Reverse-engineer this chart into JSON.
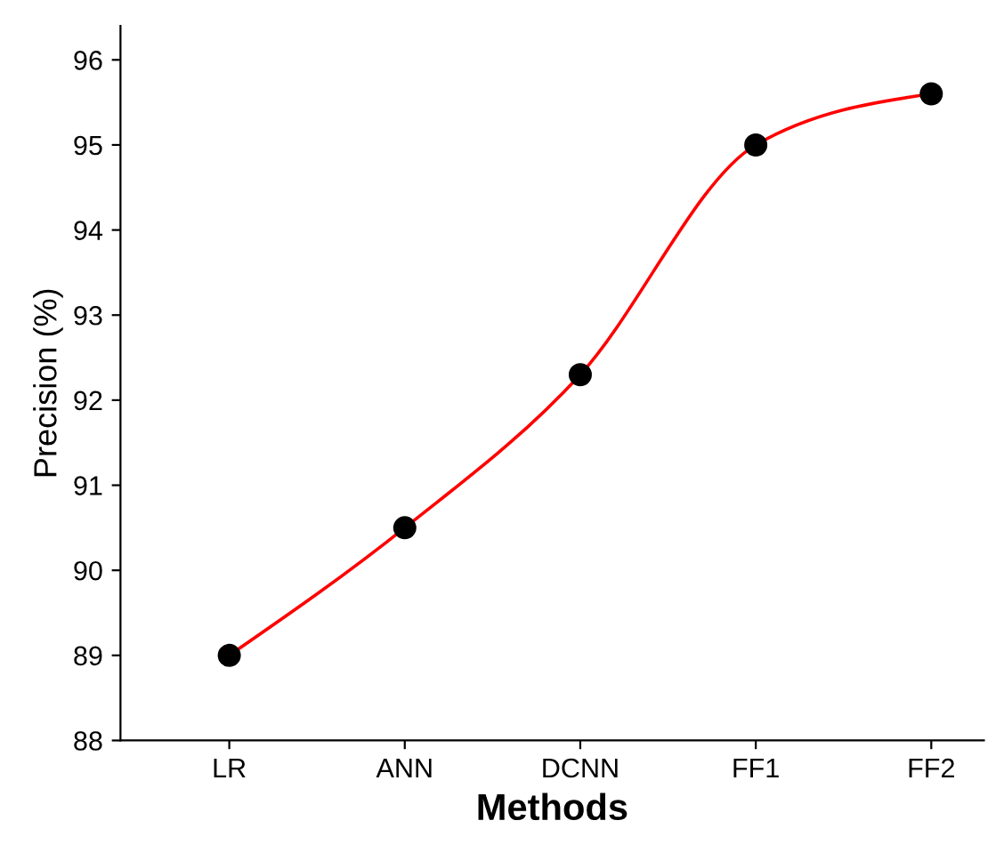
{
  "chart_data": {
    "type": "line",
    "xlabel": "Methods",
    "ylabel": "Precision (%)",
    "categories": [
      "LR",
      "ANN",
      "DCNN",
      "FF1",
      "FF2"
    ],
    "series": [
      {
        "color": "#ff0000",
        "colors": [
          "#000000",
          "#000000",
          "#000000",
          "#000000",
          "#000000"
        ],
        "values": [
          89.0,
          90.5,
          92.3,
          95.0,
          95.6
        ]
      }
    ],
    "ylim": [
      88,
      96.4
    ],
    "yticks": [
      88,
      89,
      90,
      91,
      92,
      93,
      94,
      95,
      96
    ],
    "marker": "circle",
    "line_style": "solid",
    "grid": false,
    "legend": false
  }
}
